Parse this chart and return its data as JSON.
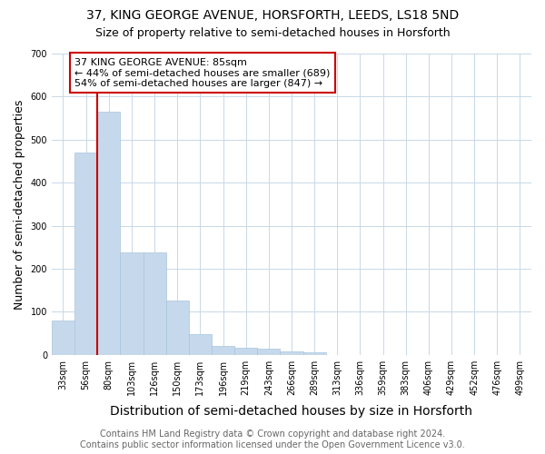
{
  "title": "37, KING GEORGE AVENUE, HORSFORTH, LEEDS, LS18 5ND",
  "subtitle": "Size of property relative to semi-detached houses in Horsforth",
  "xlabel": "Distribution of semi-detached houses by size in Horsforth",
  "ylabel": "Number of semi-detached properties",
  "bar_labels": [
    "33sqm",
    "56sqm",
    "80sqm",
    "103sqm",
    "126sqm",
    "150sqm",
    "173sqm",
    "196sqm",
    "219sqm",
    "243sqm",
    "266sqm",
    "289sqm",
    "313sqm",
    "336sqm",
    "359sqm",
    "383sqm",
    "406sqm",
    "429sqm",
    "452sqm",
    "476sqm",
    "499sqm"
  ],
  "bar_heights": [
    80,
    470,
    565,
    238,
    238,
    125,
    48,
    20,
    17,
    13,
    8,
    5,
    0,
    0,
    0,
    0,
    0,
    0,
    0,
    0,
    0
  ],
  "bar_color": "#c6d9ec",
  "bar_edge_color": "#a8c4dc",
  "ylim": [
    0,
    700
  ],
  "yticks": [
    0,
    100,
    200,
    300,
    400,
    500,
    600,
    700
  ],
  "red_line_bar_index": 2,
  "annotation_text": "37 KING GEORGE AVENUE: 85sqm\n← 44% of semi-detached houses are smaller (689)\n54% of semi-detached houses are larger (847) →",
  "annotation_box_color": "#ffffff",
  "annotation_edge_color": "#cc0000",
  "red_line_color": "#cc0000",
  "footer_line1": "Contains HM Land Registry data © Crown copyright and database right 2024.",
  "footer_line2": "Contains public sector information licensed under the Open Government Licence v3.0.",
  "background_color": "#ffffff",
  "grid_color": "#c8d8e8",
  "title_fontsize": 10,
  "subtitle_fontsize": 9,
  "axis_label_fontsize": 9,
  "tick_fontsize": 7,
  "footer_fontsize": 7,
  "annotation_fontsize": 8
}
